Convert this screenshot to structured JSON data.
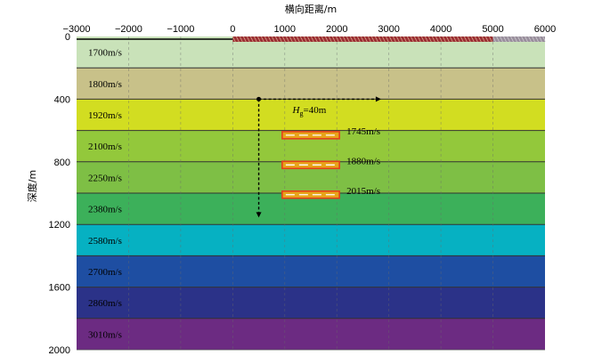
{
  "figure": {
    "x_axis_title": "横向距离/m",
    "y_axis_title": "深度/m",
    "x_ticks": [
      {
        "value": -3000,
        "label": "−3000"
      },
      {
        "value": -2000,
        "label": "−2000"
      },
      {
        "value": -1000,
        "label": "−1000"
      },
      {
        "value": 0,
        "label": "0"
      },
      {
        "value": 1000,
        "label": "1000"
      },
      {
        "value": 2000,
        "label": "2000"
      },
      {
        "value": 3000,
        "label": "3000"
      },
      {
        "value": 4000,
        "label": "4000"
      },
      {
        "value": 5000,
        "label": "5000"
      },
      {
        "value": 6000,
        "label": "6000"
      }
    ],
    "y_ticks": [
      {
        "value": 0,
        "label": "0"
      },
      {
        "value": 400,
        "label": "400"
      },
      {
        "value": 800,
        "label": "800"
      },
      {
        "value": 1200,
        "label": "1200"
      },
      {
        "value": 1600,
        "label": "1600"
      },
      {
        "value": 2000,
        "label": "2000"
      }
    ],
    "x_range": [
      -3000,
      6000
    ],
    "y_range": [
      0,
      2000
    ],
    "layers": [
      {
        "top": 0,
        "bottom": 200,
        "label": "1700m/s",
        "color": "#c9e2b9"
      },
      {
        "top": 200,
        "bottom": 400,
        "label": "1800m/s",
        "color": "#c8c189"
      },
      {
        "top": 400,
        "bottom": 600,
        "label": "1920m/s",
        "color": "#d2dd21"
      },
      {
        "top": 600,
        "bottom": 800,
        "label": "2100m/s",
        "color": "#93c83b"
      },
      {
        "top": 800,
        "bottom": 1000,
        "label": "2250m/s",
        "color": "#7ebf45"
      },
      {
        "top": 1000,
        "bottom": 1200,
        "label": "2380m/s",
        "color": "#3cb05a"
      },
      {
        "top": 1200,
        "bottom": 1400,
        "label": "2580m/s",
        "color": "#06b1c2"
      },
      {
        "top": 1400,
        "bottom": 1600,
        "label": "2700m/s",
        "color": "#1e4ea2"
      },
      {
        "top": 1600,
        "bottom": 1800,
        "label": "2860m/s",
        "color": "#2b3288"
      },
      {
        "top": 1800,
        "bottom": 2000,
        "label": "3010m/s",
        "color": "#6c2b82"
      }
    ],
    "lenses": [
      {
        "depth": 630,
        "x_start": 950,
        "x_end": 2050,
        "label": "1745m/s"
      },
      {
        "depth": 820,
        "x_start": 950,
        "x_end": 2050,
        "label": "1880m/s"
      },
      {
        "depth": 1010,
        "x_start": 950,
        "x_end": 2050,
        "label": "2015m/s"
      }
    ],
    "surface_line": {
      "x_start": -3000,
      "x_end": 0,
      "depth": 0
    },
    "receivers": {
      "x_start": 0,
      "x_end": 5000,
      "color": "#9b2f34"
    },
    "receivers_extra": {
      "x_start": 5000,
      "x_end": 6000,
      "color": "#9a8f9d"
    },
    "vertical_arrow": {
      "x": 500,
      "y_start": 400,
      "y_end": 1150
    },
    "horizontal_arrow": {
      "y": 400,
      "x_start": 500,
      "x_end": 2850
    },
    "annotation": {
      "prefix": "H",
      "subscript": "g",
      "suffix": "=40m",
      "x": 1150,
      "y": 490
    },
    "lens_color": "#e8a41a",
    "lens_border": "#e2401c",
    "dashed_grid_color": "#6a6a6a"
  }
}
